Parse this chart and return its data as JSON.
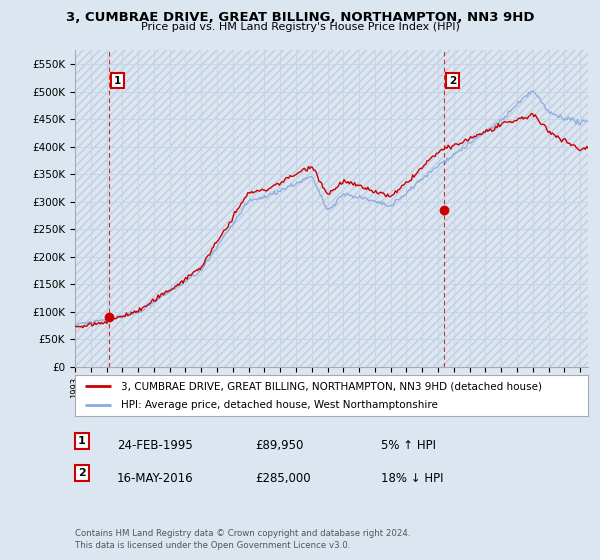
{
  "title_line1": "3, CUMBRAE DRIVE, GREAT BILLING, NORTHAMPTON, NN3 9HD",
  "title_line2": "Price paid vs. HM Land Registry's House Price Index (HPI)",
  "ylim": [
    0,
    575000
  ],
  "yticks": [
    0,
    50000,
    100000,
    150000,
    200000,
    250000,
    300000,
    350000,
    400000,
    450000,
    500000,
    550000
  ],
  "ytick_labels": [
    "£0",
    "£50K",
    "£100K",
    "£150K",
    "£200K",
    "£250K",
    "£300K",
    "£350K",
    "£400K",
    "£450K",
    "£500K",
    "£550K"
  ],
  "sale1_x": 1995.15,
  "sale1_price": 89950,
  "sale2_x": 2016.38,
  "sale2_price": 285000,
  "legend_line1": "3, CUMBRAE DRIVE, GREAT BILLING, NORTHAMPTON, NN3 9HD (detached house)",
  "legend_line2": "HPI: Average price, detached house, West Northamptonshire",
  "table_row1": [
    "1",
    "24-FEB-1995",
    "£89,950",
    "5% ↑ HPI"
  ],
  "table_row2": [
    "2",
    "16-MAY-2016",
    "£285,000",
    "18% ↓ HPI"
  ],
  "footnote": "Contains HM Land Registry data © Crown copyright and database right 2024.\nThis data is licensed under the Open Government Licence v3.0.",
  "price_color": "#cc0000",
  "hpi_color": "#88aadd",
  "background_color": "#dce6f1",
  "plot_bg_color": "#dce6f1",
  "grid_color": "#bbbbcc",
  "xlim_min": 1993.0,
  "xlim_max": 2025.5
}
